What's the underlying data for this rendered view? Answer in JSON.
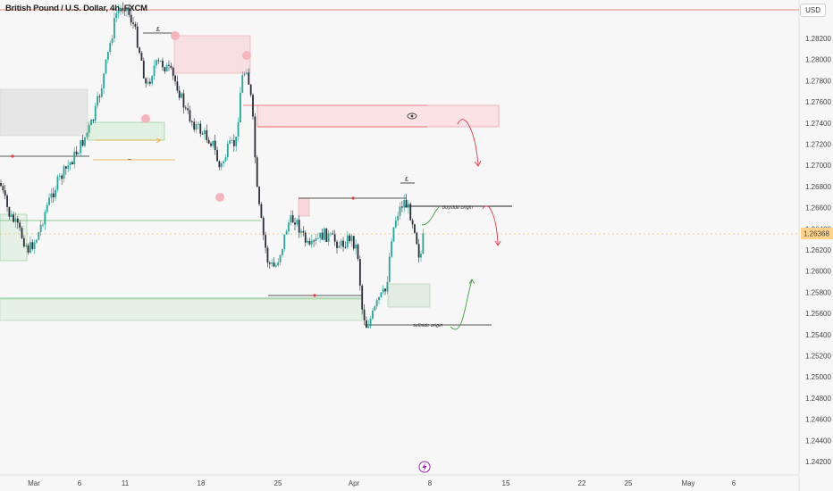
{
  "header": {
    "symbol_title": "British Pound / U.S. Dollar, 4h, FXCM",
    "currency_button": "USD"
  },
  "current_price_label": "1.26368",
  "annotations": {
    "buyside": "buyside origin",
    "sellside": "sellside origin",
    "pound_1": "£",
    "pound_2": "£",
    "approx": "~"
  },
  "colors": {
    "bull": "#26a69a",
    "bear": "#2a2e39",
    "supply_zone": "#f8d7da",
    "demand_zone": "#d7ecd9",
    "neutral_zone": "#e4e4e4",
    "red_line": "#f08080",
    "green_line": "#66bb6a",
    "price_tag": "#fdd28a"
  },
  "icons": {
    "flash": "flash-icon",
    "eye": "eye-icon"
  },
  "chart_data": {
    "type": "candlestick",
    "title": "British Pound / U.S. Dollar, 4h, FXCM",
    "ylabel": "USD",
    "ylim": [
      1.241,
      1.2898
    ],
    "yticks": [
      "1.28200",
      "1.28000",
      "1.27800",
      "1.27600",
      "1.27400",
      "1.27200",
      "1.27000",
      "1.26800",
      "1.26600",
      "1.26400",
      "1.26200",
      "1.26000",
      "1.25800",
      "1.25600",
      "1.25400",
      "1.25200",
      "1.25000",
      "1.24800",
      "1.24600",
      "1.24400",
      "1.24200"
    ],
    "xticks": [
      "Mar",
      "6",
      "11",
      "18",
      "25",
      "Apr",
      "8",
      "15",
      "22",
      "25",
      "May",
      "6"
    ],
    "current_price": 1.26368,
    "levels": [
      {
        "name": "top-red-line",
        "price": 1.2891,
        "color": "red"
      },
      {
        "name": "buyside-origin",
        "price": 1.2665,
        "color": "black"
      },
      {
        "name": "sellside-origin",
        "price": 1.2556,
        "color": "black"
      },
      {
        "name": "green-support",
        "price": 1.2644,
        "color": "green"
      },
      {
        "name": "green-support-2",
        "price": 1.2576,
        "color": "green"
      }
    ],
    "zones": [
      {
        "name": "supply-zone-1",
        "type": "supply",
        "high": 1.2834,
        "low": 1.2798
      },
      {
        "name": "supply-zone-2",
        "type": "supply",
        "high": 1.2759,
        "low": 1.2738
      },
      {
        "name": "supply-zone-3",
        "type": "supply",
        "high": 1.2672,
        "low": 1.2657
      },
      {
        "name": "demand-zone-1",
        "type": "demand",
        "high": 1.2758,
        "low": 1.274
      },
      {
        "name": "demand-zone-2",
        "type": "demand",
        "high": 1.2575,
        "low": 1.2557
      },
      {
        "name": "demand-zone-3",
        "type": "demand",
        "high": 1.2589,
        "low": 1.2567
      },
      {
        "name": "neutral-zone",
        "type": "neutral",
        "high": 1.2776,
        "low": 1.2731
      }
    ],
    "grid": false
  }
}
